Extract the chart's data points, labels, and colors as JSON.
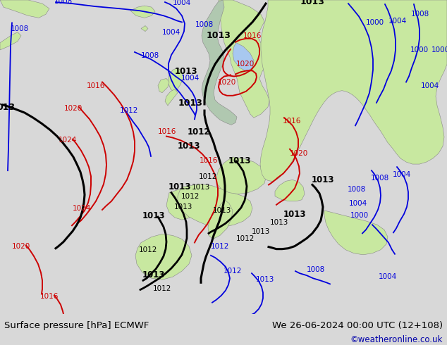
{
  "title_left": "Surface pressure [hPa] ECMWF",
  "title_right": "We 26-06-2024 00:00 UTC (12+108)",
  "copyright": "©weatheronline.co.uk",
  "ocean_color": "#d0d8e0",
  "land_color": "#c8e8a0",
  "land_color2": "#b8d890",
  "footer_bg": "#d8d8d8",
  "blue": "#0000dd",
  "red": "#cc0000",
  "black": "#000000",
  "figsize": [
    6.34,
    4.9
  ],
  "dpi": 100
}
